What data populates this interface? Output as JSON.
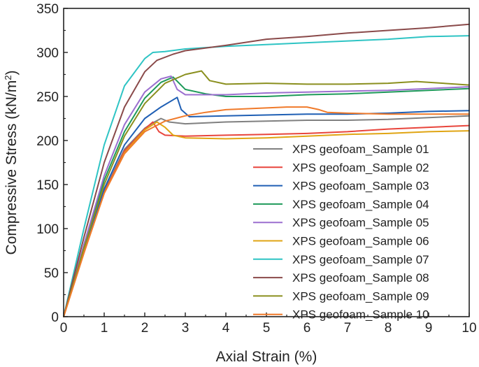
{
  "chart_data": {
    "type": "line",
    "title": "",
    "xlabel": "Axial Strain (%)",
    "ylabel_main": "Compressive Stress (kN/m",
    "ylabel_sup": "2",
    "ylabel_tail": ")",
    "xlim": [
      0,
      10
    ],
    "ylim": [
      0,
      350
    ],
    "xticks": [
      0,
      1,
      2,
      3,
      4,
      5,
      6,
      7,
      8,
      9,
      10
    ],
    "yticks": [
      0,
      50,
      100,
      150,
      200,
      250,
      300,
      350
    ],
    "grid": false,
    "legend_position": "lower-right",
    "series": [
      {
        "name": "XPS geofoam_Sample 01",
        "color": "#808080",
        "x": [
          0,
          0.5,
          1,
          1.5,
          2,
          2.2,
          2.4,
          2.6,
          3,
          4,
          5,
          6,
          7,
          8,
          9,
          10
        ],
        "y": [
          0,
          75,
          142,
          190,
          214,
          220,
          225,
          221,
          219,
          221,
          222,
          223,
          223,
          224,
          226,
          228
        ]
      },
      {
        "name": "XPS geofoam_Sample 02",
        "color": "#e8453c",
        "x": [
          0,
          0.5,
          1,
          1.5,
          2,
          2.2,
          2.35,
          2.5,
          3,
          4,
          5,
          6,
          7,
          8,
          9,
          10
        ],
        "y": [
          0,
          74,
          141,
          188,
          213,
          221,
          210,
          206,
          205,
          206,
          207,
          208,
          210,
          213,
          215,
          217
        ]
      },
      {
        "name": "XPS geofoam_Sample 03",
        "color": "#1f5fb4",
        "x": [
          0,
          0.5,
          1,
          1.5,
          2,
          2.4,
          2.8,
          2.9,
          3.1,
          4,
          5,
          6,
          7,
          8,
          9,
          10
        ],
        "y": [
          0,
          76,
          145,
          195,
          225,
          238,
          249,
          235,
          227,
          228,
          229,
          230,
          230,
          231,
          233,
          234
        ]
      },
      {
        "name": "XPS geofoam_Sample 04",
        "color": "#1e9a5a",
        "x": [
          0,
          0.5,
          1,
          1.5,
          2,
          2.4,
          2.7,
          3,
          3.5,
          4,
          5,
          6,
          7,
          8,
          9,
          10
        ],
        "y": [
          0,
          80,
          155,
          210,
          248,
          266,
          272,
          258,
          253,
          250,
          250,
          252,
          253,
          255,
          257,
          259
        ]
      },
      {
        "name": "XPS geofoam_Sample 05",
        "color": "#9b6fcf",
        "x": [
          0,
          0.5,
          1,
          1.5,
          2,
          2.4,
          2.65,
          2.8,
          3,
          4,
          5,
          6,
          7,
          8,
          9,
          10
        ],
        "y": [
          0,
          82,
          160,
          218,
          255,
          270,
          273,
          258,
          252,
          252,
          254,
          255,
          256,
          257,
          259,
          261
        ]
      },
      {
        "name": "XPS geofoam_Sample 06",
        "color": "#e0a514",
        "x": [
          0,
          0.5,
          1,
          1.5,
          2,
          2.3,
          2.5,
          2.7,
          3,
          4,
          5,
          6,
          7,
          8,
          9,
          10
        ],
        "y": [
          0,
          73,
          140,
          186,
          212,
          221,
          215,
          206,
          203,
          202,
          203,
          205,
          207,
          208,
          210,
          211
        ]
      },
      {
        "name": "XPS geofoam_Sample 07",
        "color": "#2ec4c4",
        "x": [
          0,
          0.5,
          1,
          1.5,
          2,
          2.2,
          2.5,
          3,
          4,
          5,
          6,
          7,
          8,
          9,
          10
        ],
        "y": [
          0,
          100,
          195,
          262,
          293,
          300,
          301,
          304,
          307,
          309,
          311,
          313,
          315,
          318,
          319
        ]
      },
      {
        "name": "XPS geofoam_Sample 08",
        "color": "#8a4a4a",
        "x": [
          0,
          0.5,
          1,
          1.5,
          2,
          2.3,
          2.7,
          3,
          4,
          5,
          6,
          7,
          8,
          9,
          10
        ],
        "y": [
          0,
          90,
          175,
          238,
          278,
          291,
          298,
          302,
          308,
          315,
          318,
          322,
          325,
          328,
          332
        ]
      },
      {
        "name": "XPS geofoam_Sample 09",
        "color": "#8a8f1e",
        "x": [
          0,
          0.5,
          1,
          1.5,
          2,
          2.5,
          3,
          3.4,
          3.6,
          4,
          5,
          6,
          7,
          8,
          8.7,
          10
        ],
        "y": [
          0,
          78,
          150,
          205,
          242,
          265,
          275,
          279,
          268,
          264,
          265,
          264,
          264,
          265,
          267,
          263
        ]
      },
      {
        "name": "XPS geofoam_Sample 10",
        "color": "#f07a2a",
        "x": [
          0,
          0.5,
          1,
          1.5,
          2,
          2.5,
          3,
          3.5,
          4,
          5,
          5.5,
          6,
          6.3,
          6.5,
          7,
          8,
          9,
          10
        ],
        "y": [
          0,
          72,
          140,
          185,
          210,
          222,
          228,
          232,
          235,
          237,
          238,
          238,
          235,
          232,
          231,
          230,
          230,
          230
        ]
      }
    ]
  }
}
